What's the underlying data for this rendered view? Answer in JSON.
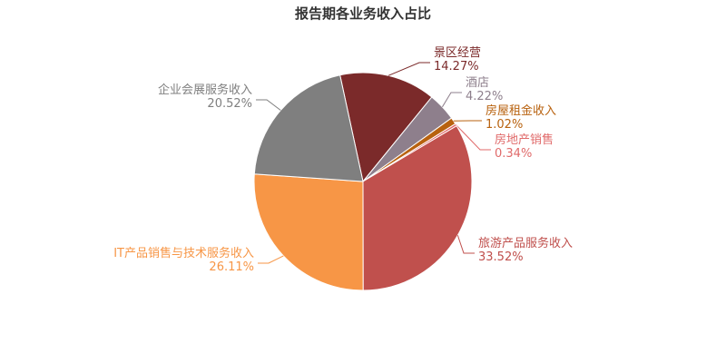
{
  "chart_data": {
    "type": "pie",
    "title": "报告期各业务收入占比",
    "categories": [
      "景区经营",
      "酒店",
      "房屋租金收入",
      "房地产销售",
      "旅游产品服务收入",
      "IT产品销售与技术服务收入",
      "企业会展服务收入"
    ],
    "values": [
      14.27,
      4.22,
      1.02,
      0.34,
      33.52,
      26.11,
      20.52
    ],
    "value_labels": [
      "14.27%",
      "4.22%",
      "1.02%",
      "0.34%",
      "33.52%",
      "26.11%",
      "20.52%"
    ],
    "colors": [
      "#7b2a2a",
      "#8e7f8c",
      "#b8620f",
      "#e06a6a",
      "#c0504d",
      "#f79646",
      "#7f7f7f"
    ]
  }
}
